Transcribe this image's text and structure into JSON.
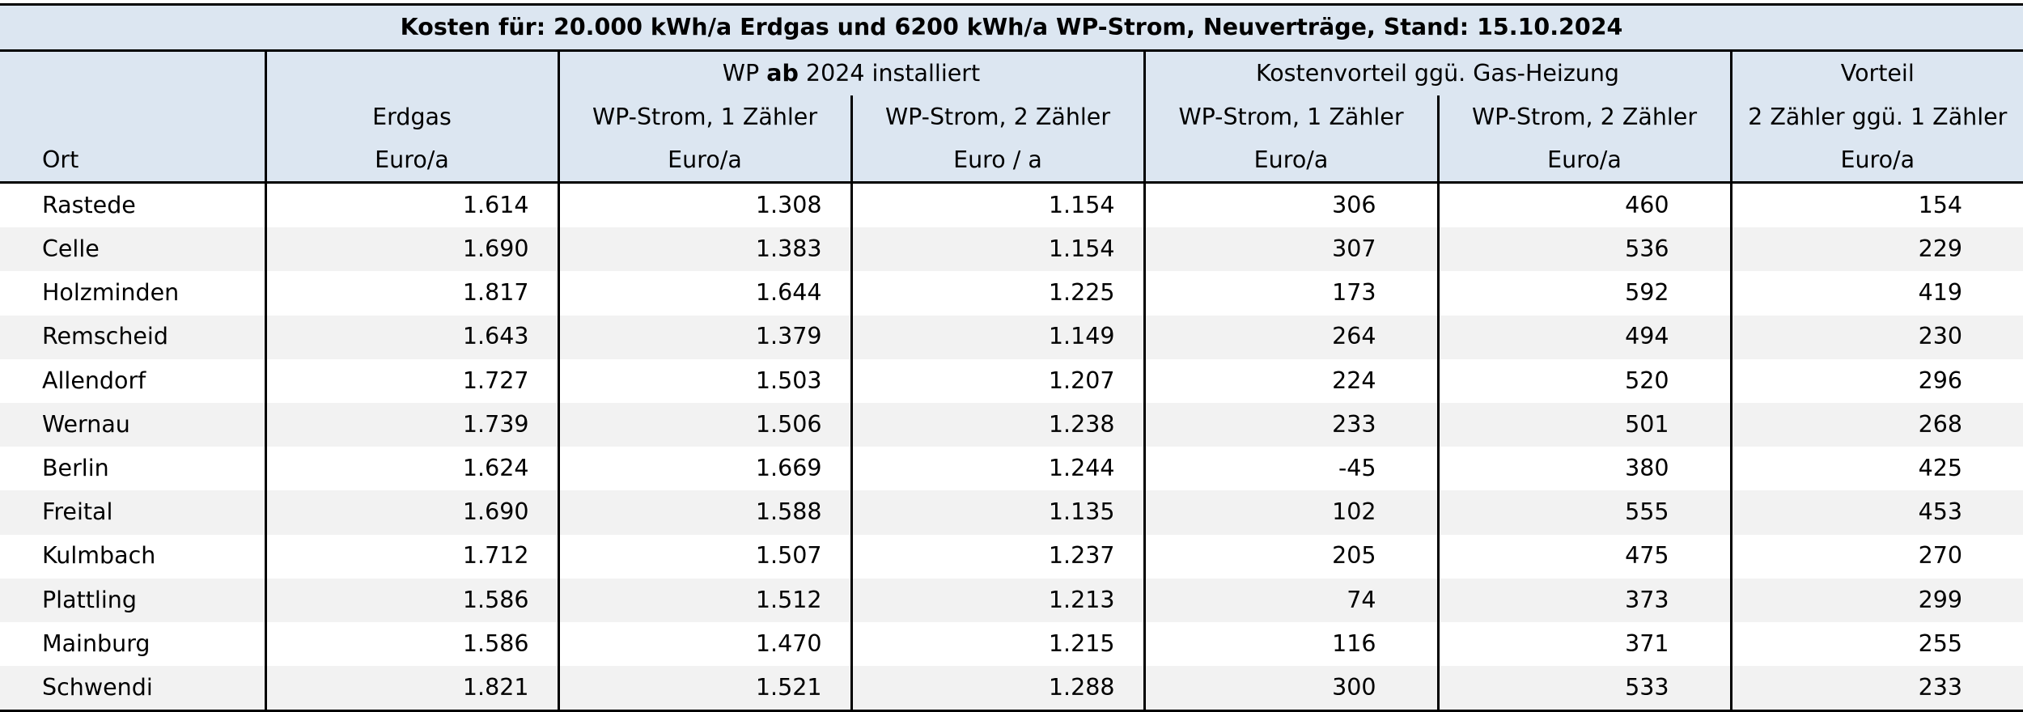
{
  "title": "Kosten für: 20.000 kWh/a Erdgas und 6200 kWh/a WP-Strom, Neuverträge, Stand: 15.10.2024",
  "header": {
    "group_wp_prefix": "WP ",
    "group_wp_bold": "ab",
    "group_wp_suffix": " 2024 installiert",
    "group_kosten": "Kostenvorteil ggü. Gas-Heizung",
    "group_vorteil": "Vorteil",
    "col_erdgas": "Erdgas",
    "col_wp1": "WP-Strom, 1 Zähler",
    "col_wp2": "WP-Strom, 2 Zähler",
    "col_k1": "WP-Strom, 1 Zähler",
    "col_k2": "WP-Strom, 2 Zähler",
    "col_vorteil": "2 Zähler ggü. 1 Zähler",
    "col_ort": "Ort",
    "unit_erdgas": "Euro/a",
    "unit_wp1": "Euro/a",
    "unit_wp2": "Euro / a",
    "unit_k1": "Euro/a",
    "unit_k2": "Euro/a",
    "unit_vorteil": "Euro/a"
  },
  "rows": [
    {
      "ort": "Rastede",
      "erdgas": "1.614",
      "wp1": "1.308",
      "wp2": "1.154",
      "k1": "306",
      "k2": "460",
      "vorteil": "154"
    },
    {
      "ort": "Celle",
      "erdgas": "1.690",
      "wp1": "1.383",
      "wp2": "1.154",
      "k1": "307",
      "k2": "536",
      "vorteil": "229"
    },
    {
      "ort": "Holzminden",
      "erdgas": "1.817",
      "wp1": "1.644",
      "wp2": "1.225",
      "k1": "173",
      "k2": "592",
      "vorteil": "419"
    },
    {
      "ort": "Remscheid",
      "erdgas": "1.643",
      "wp1": "1.379",
      "wp2": "1.149",
      "k1": "264",
      "k2": "494",
      "vorteil": "230"
    },
    {
      "ort": "Allendorf",
      "erdgas": "1.727",
      "wp1": "1.503",
      "wp2": "1.207",
      "k1": "224",
      "k2": "520",
      "vorteil": "296"
    },
    {
      "ort": "Wernau",
      "erdgas": "1.739",
      "wp1": "1.506",
      "wp2": "1.238",
      "k1": "233",
      "k2": "501",
      "vorteil": "268"
    },
    {
      "ort": "Berlin",
      "erdgas": "1.624",
      "wp1": "1.669",
      "wp2": "1.244",
      "k1": "-45",
      "k2": "380",
      "vorteil": "425"
    },
    {
      "ort": "Freital",
      "erdgas": "1.690",
      "wp1": "1.588",
      "wp2": "1.135",
      "k1": "102",
      "k2": "555",
      "vorteil": "453"
    },
    {
      "ort": "Kulmbach",
      "erdgas": "1.712",
      "wp1": "1.507",
      "wp2": "1.237",
      "k1": "205",
      "k2": "475",
      "vorteil": "270"
    },
    {
      "ort": "Plattling",
      "erdgas": "1.586",
      "wp1": "1.512",
      "wp2": "1.213",
      "k1": "74",
      "k2": "373",
      "vorteil": "299"
    },
    {
      "ort": "Mainburg",
      "erdgas": "1.586",
      "wp1": "1.470",
      "wp2": "1.215",
      "k1": "116",
      "k2": "371",
      "vorteil": "255"
    },
    {
      "ort": "Schwendi",
      "erdgas": "1.821",
      "wp1": "1.521",
      "wp2": "1.288",
      "k1": "300",
      "k2": "533",
      "vorteil": "233"
    }
  ],
  "colors": {
    "header_bg": "#dce6f1",
    "stripe_bg": "#f2f2f2",
    "border": "#000000"
  }
}
